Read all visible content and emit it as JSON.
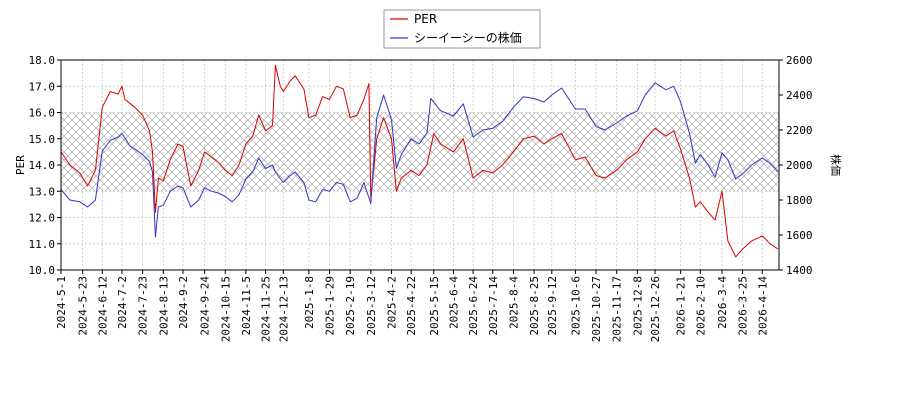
{
  "chart_data": {
    "type": "line",
    "legend": {
      "placement": "top-center",
      "entries": [
        "PER",
        "シーイーシーの株価"
      ]
    },
    "band": {
      "y_from": 13.0,
      "y_to": 16.0,
      "pattern": "crosshatch"
    },
    "grid": true,
    "axes": {
      "left": {
        "label": "PER",
        "range": [
          10.0,
          18.0
        ],
        "ticks": [
          "10.0",
          "11.0",
          "12.0",
          "13.0",
          "14.0",
          "15.0",
          "16.0",
          "17.0",
          "18.0"
        ],
        "tick_values": [
          10,
          11,
          12,
          13,
          14,
          15,
          16,
          17,
          18
        ]
      },
      "right": {
        "label": "株価",
        "range": [
          1400,
          2600
        ],
        "ticks": [
          "1400",
          "1600",
          "1800",
          "2000",
          "2200",
          "2400",
          "2600"
        ],
        "tick_values": [
          1400,
          1600,
          1800,
          2000,
          2200,
          2400,
          2600
        ]
      },
      "x": {
        "start": "2024-05-01",
        "end": "2026-05-01",
        "ticks": [
          "2024-5-1",
          "2024-5-23",
          "2024-6-12",
          "2024-7-2",
          "2024-7-23",
          "2024-8-13",
          "2024-9-2",
          "2024-9-24",
          "2024-10-15",
          "2024-11-5",
          "2024-11-25",
          "2024-12-13",
          "2025-1-8",
          "2025-1-29",
          "2025-2-19",
          "2025-3-12",
          "2025-4-2",
          "2025-4-22",
          "2025-5-15",
          "2025-6-4",
          "2025-6-24",
          "2025-7-14",
          "2025-8-4",
          "2025-8-25",
          "2025-9-12",
          "2025-10-6",
          "2025-10-27",
          "2025-11-17",
          "2025-12-8",
          "2025-12-26",
          "2026-1-21",
          "2026-2-10",
          "2026-3-4",
          "2026-3-25",
          "2026-4-14"
        ]
      }
    },
    "series": [
      {
        "name": "PER",
        "color": "#dd0000",
        "axis": "left",
        "points": [
          [
            "2024-05-01",
            14.5
          ],
          [
            "2024-05-10",
            14.0
          ],
          [
            "2024-05-20",
            13.7
          ],
          [
            "2024-05-28",
            13.2
          ],
          [
            "2024-06-05",
            13.8
          ],
          [
            "2024-06-12",
            16.2
          ],
          [
            "2024-06-20",
            16.8
          ],
          [
            "2024-06-28",
            16.7
          ],
          [
            "2024-07-02",
            17.0
          ],
          [
            "2024-07-05",
            16.5
          ],
          [
            "2024-07-15",
            16.2
          ],
          [
            "2024-07-23",
            15.9
          ],
          [
            "2024-07-30",
            15.3
          ],
          [
            "2024-08-02",
            14.5
          ],
          [
            "2024-08-05",
            12.2
          ],
          [
            "2024-08-08",
            13.5
          ],
          [
            "2024-08-13",
            13.4
          ],
          [
            "2024-08-20",
            14.2
          ],
          [
            "2024-08-28",
            14.8
          ],
          [
            "2024-09-02",
            14.7
          ],
          [
            "2024-09-10",
            13.2
          ],
          [
            "2024-09-18",
            13.8
          ],
          [
            "2024-09-24",
            14.5
          ],
          [
            "2024-10-01",
            14.3
          ],
          [
            "2024-10-08",
            14.1
          ],
          [
            "2024-10-15",
            13.8
          ],
          [
            "2024-10-22",
            13.6
          ],
          [
            "2024-10-29",
            14.0
          ],
          [
            "2024-11-05",
            14.8
          ],
          [
            "2024-11-12",
            15.1
          ],
          [
            "2024-11-18",
            15.9
          ],
          [
            "2024-11-25",
            15.3
          ],
          [
            "2024-12-02",
            15.5
          ],
          [
            "2024-12-05",
            17.8
          ],
          [
            "2024-12-10",
            17.0
          ],
          [
            "2024-12-13",
            16.8
          ],
          [
            "2024-12-20",
            17.2
          ],
          [
            "2024-12-25",
            17.4
          ],
          [
            "2025-01-03",
            16.9
          ],
          [
            "2025-01-08",
            15.8
          ],
          [
            "2025-01-15",
            15.9
          ],
          [
            "2025-01-22",
            16.6
          ],
          [
            "2025-01-29",
            16.5
          ],
          [
            "2025-02-05",
            17.0
          ],
          [
            "2025-02-12",
            16.9
          ],
          [
            "2025-02-19",
            15.8
          ],
          [
            "2025-02-26",
            15.9
          ],
          [
            "2025-03-05",
            16.5
          ],
          [
            "2025-03-10",
            17.1
          ],
          [
            "2025-03-12",
            12.7
          ],
          [
            "2025-03-18",
            15.0
          ],
          [
            "2025-03-25",
            15.8
          ],
          [
            "2025-04-02",
            15.0
          ],
          [
            "2025-04-07",
            13.0
          ],
          [
            "2025-04-12",
            13.5
          ],
          [
            "2025-04-22",
            13.8
          ],
          [
            "2025-04-30",
            13.6
          ],
          [
            "2025-05-08",
            14.0
          ],
          [
            "2025-05-15",
            15.2
          ],
          [
            "2025-05-22",
            14.8
          ],
          [
            "2025-06-04",
            14.5
          ],
          [
            "2025-06-14",
            15.0
          ],
          [
            "2025-06-24",
            13.5
          ],
          [
            "2025-07-04",
            13.8
          ],
          [
            "2025-07-14",
            13.7
          ],
          [
            "2025-07-24",
            14.0
          ],
          [
            "2025-08-04",
            14.5
          ],
          [
            "2025-08-14",
            15.0
          ],
          [
            "2025-08-25",
            15.1
          ],
          [
            "2025-09-04",
            14.8
          ],
          [
            "2025-09-12",
            15.0
          ],
          [
            "2025-09-22",
            15.2
          ],
          [
            "2025-10-06",
            14.2
          ],
          [
            "2025-10-16",
            14.3
          ],
          [
            "2025-10-27",
            13.6
          ],
          [
            "2025-11-05",
            13.5
          ],
          [
            "2025-11-17",
            13.8
          ],
          [
            "2025-11-27",
            14.2
          ],
          [
            "2025-12-08",
            14.5
          ],
          [
            "2025-12-16",
            15.0
          ],
          [
            "2025-12-26",
            15.4
          ],
          [
            "2026-01-06",
            15.1
          ],
          [
            "2026-01-14",
            15.3
          ],
          [
            "2026-01-21",
            14.6
          ],
          [
            "2026-01-30",
            13.5
          ],
          [
            "2026-02-05",
            12.4
          ],
          [
            "2026-02-10",
            12.6
          ],
          [
            "2026-02-18",
            12.2
          ],
          [
            "2026-02-25",
            11.9
          ],
          [
            "2026-03-04",
            13.0
          ],
          [
            "2026-03-10",
            11.1
          ],
          [
            "2026-03-18",
            10.5
          ],
          [
            "2026-03-25",
            10.8
          ],
          [
            "2026-04-03",
            11.1
          ],
          [
            "2026-04-14",
            11.3
          ],
          [
            "2026-04-22",
            11.0
          ],
          [
            "2026-04-30",
            10.8
          ]
        ]
      },
      {
        "name": "シーイーシーの株価",
        "color": "#3333cc",
        "axis": "right",
        "points": [
          [
            "2024-05-01",
            1860
          ],
          [
            "2024-05-10",
            1800
          ],
          [
            "2024-05-20",
            1790
          ],
          [
            "2024-05-28",
            1760
          ],
          [
            "2024-06-05",
            1800
          ],
          [
            "2024-06-12",
            2080
          ],
          [
            "2024-06-20",
            2140
          ],
          [
            "2024-06-28",
            2160
          ],
          [
            "2024-07-02",
            2180
          ],
          [
            "2024-07-10",
            2110
          ],
          [
            "2024-07-23",
            2060
          ],
          [
            "2024-07-30",
            2020
          ],
          [
            "2024-08-02",
            1960
          ],
          [
            "2024-08-05",
            1590
          ],
          [
            "2024-08-08",
            1760
          ],
          [
            "2024-08-13",
            1770
          ],
          [
            "2024-08-20",
            1850
          ],
          [
            "2024-08-28",
            1880
          ],
          [
            "2024-09-02",
            1870
          ],
          [
            "2024-09-10",
            1760
          ],
          [
            "2024-09-18",
            1800
          ],
          [
            "2024-09-24",
            1870
          ],
          [
            "2024-10-01",
            1850
          ],
          [
            "2024-10-08",
            1840
          ],
          [
            "2024-10-15",
            1820
          ],
          [
            "2024-10-22",
            1790
          ],
          [
            "2024-10-29",
            1830
          ],
          [
            "2024-11-05",
            1920
          ],
          [
            "2024-11-12",
            1960
          ],
          [
            "2024-11-18",
            2040
          ],
          [
            "2024-11-25",
            1980
          ],
          [
            "2024-12-02",
            2000
          ],
          [
            "2024-12-05",
            1960
          ],
          [
            "2024-12-13",
            1900
          ],
          [
            "2024-12-20",
            1940
          ],
          [
            "2024-12-25",
            1960
          ],
          [
            "2025-01-03",
            1900
          ],
          [
            "2025-01-08",
            1800
          ],
          [
            "2025-01-15",
            1790
          ],
          [
            "2025-01-22",
            1860
          ],
          [
            "2025-01-29",
            1850
          ],
          [
            "2025-02-05",
            1900
          ],
          [
            "2025-02-12",
            1890
          ],
          [
            "2025-02-19",
            1790
          ],
          [
            "2025-02-26",
            1810
          ],
          [
            "2025-03-05",
            1900
          ],
          [
            "2025-03-12",
            1780
          ],
          [
            "2025-03-18",
            2270
          ],
          [
            "2025-03-25",
            2400
          ],
          [
            "2025-04-02",
            2260
          ],
          [
            "2025-04-07",
            1980
          ],
          [
            "2025-04-12",
            2060
          ],
          [
            "2025-04-22",
            2150
          ],
          [
            "2025-04-30",
            2120
          ],
          [
            "2025-05-08",
            2180
          ],
          [
            "2025-05-12",
            2380
          ],
          [
            "2025-05-22",
            2310
          ],
          [
            "2025-06-04",
            2280
          ],
          [
            "2025-06-14",
            2350
          ],
          [
            "2025-06-24",
            2160
          ],
          [
            "2025-07-04",
            2200
          ],
          [
            "2025-07-14",
            2210
          ],
          [
            "2025-07-24",
            2250
          ],
          [
            "2025-08-04",
            2330
          ],
          [
            "2025-08-14",
            2390
          ],
          [
            "2025-08-25",
            2380
          ],
          [
            "2025-09-04",
            2360
          ],
          [
            "2025-09-12",
            2400
          ],
          [
            "2025-09-22",
            2440
          ],
          [
            "2025-10-06",
            2320
          ],
          [
            "2025-10-16",
            2320
          ],
          [
            "2025-10-27",
            2220
          ],
          [
            "2025-11-05",
            2200
          ],
          [
            "2025-11-17",
            2240
          ],
          [
            "2025-11-27",
            2280
          ],
          [
            "2025-12-08",
            2310
          ],
          [
            "2025-12-16",
            2400
          ],
          [
            "2025-12-26",
            2470
          ],
          [
            "2026-01-06",
            2430
          ],
          [
            "2026-01-14",
            2450
          ],
          [
            "2026-01-21",
            2360
          ],
          [
            "2026-01-30",
            2180
          ],
          [
            "2026-02-05",
            2010
          ],
          [
            "2026-02-10",
            2060
          ],
          [
            "2026-02-18",
            2000
          ],
          [
            "2026-02-25",
            1930
          ],
          [
            "2026-03-04",
            2070
          ],
          [
            "2026-03-10",
            2030
          ],
          [
            "2026-03-18",
            1920
          ],
          [
            "2026-03-25",
            1950
          ],
          [
            "2026-04-03",
            2000
          ],
          [
            "2026-04-14",
            2040
          ],
          [
            "2026-04-22",
            2010
          ],
          [
            "2026-04-30",
            1960
          ]
        ]
      }
    ]
  }
}
